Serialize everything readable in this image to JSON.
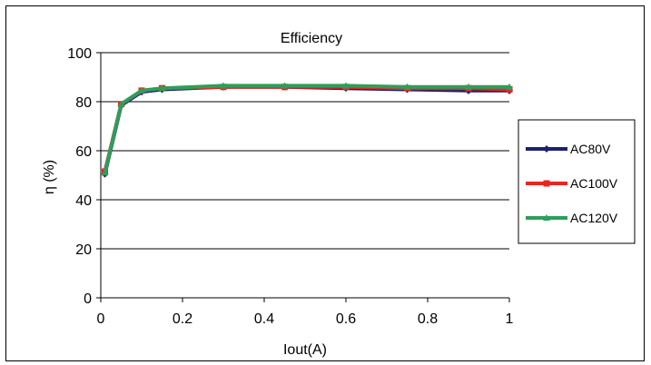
{
  "chart_data": {
    "type": "line",
    "title": "Efficiency",
    "xlabel": "Iout(A)",
    "ylabel": "η (%)",
    "xlim": [
      0,
      1
    ],
    "ylim": [
      0,
      100
    ],
    "xticks": [
      0,
      0.2,
      0.4,
      0.6,
      0.8,
      1
    ],
    "xtick_labels": [
      "0",
      "0.2",
      "0.4",
      "0.6",
      "0.8",
      "1"
    ],
    "yticks": [
      0,
      20,
      40,
      60,
      80,
      100
    ],
    "ytick_labels": [
      "0",
      "20",
      "40",
      "60",
      "80",
      "100"
    ],
    "grid": "horizontal",
    "legend_position": "right",
    "series": [
      {
        "name": "AC80V",
        "color": "#1f1f6f",
        "marker": "diamond",
        "x": [
          0.01,
          0.05,
          0.1,
          0.15,
          0.3,
          0.45,
          0.6,
          0.75,
          0.9,
          1.0
        ],
        "y": [
          50.5,
          78.5,
          84,
          85,
          86,
          86,
          85.5,
          85,
          84.5,
          84.5
        ]
      },
      {
        "name": "AC100V",
        "color": "#e8261e",
        "marker": "square",
        "x": [
          0.01,
          0.05,
          0.1,
          0.15,
          0.3,
          0.45,
          0.6,
          0.75,
          0.9,
          1.0
        ],
        "y": [
          51.5,
          79,
          84.5,
          85.5,
          86,
          86,
          86,
          85.5,
          85.5,
          85
        ]
      },
      {
        "name": "AC120V",
        "color": "#2e9e5a",
        "marker": "triangle",
        "x": [
          0.01,
          0.05,
          0.1,
          0.15,
          0.3,
          0.45,
          0.6,
          0.75,
          0.9,
          1.0
        ],
        "y": [
          51,
          79,
          84.5,
          85.5,
          86.5,
          86.5,
          86.5,
          86,
          86,
          86
        ]
      }
    ]
  }
}
